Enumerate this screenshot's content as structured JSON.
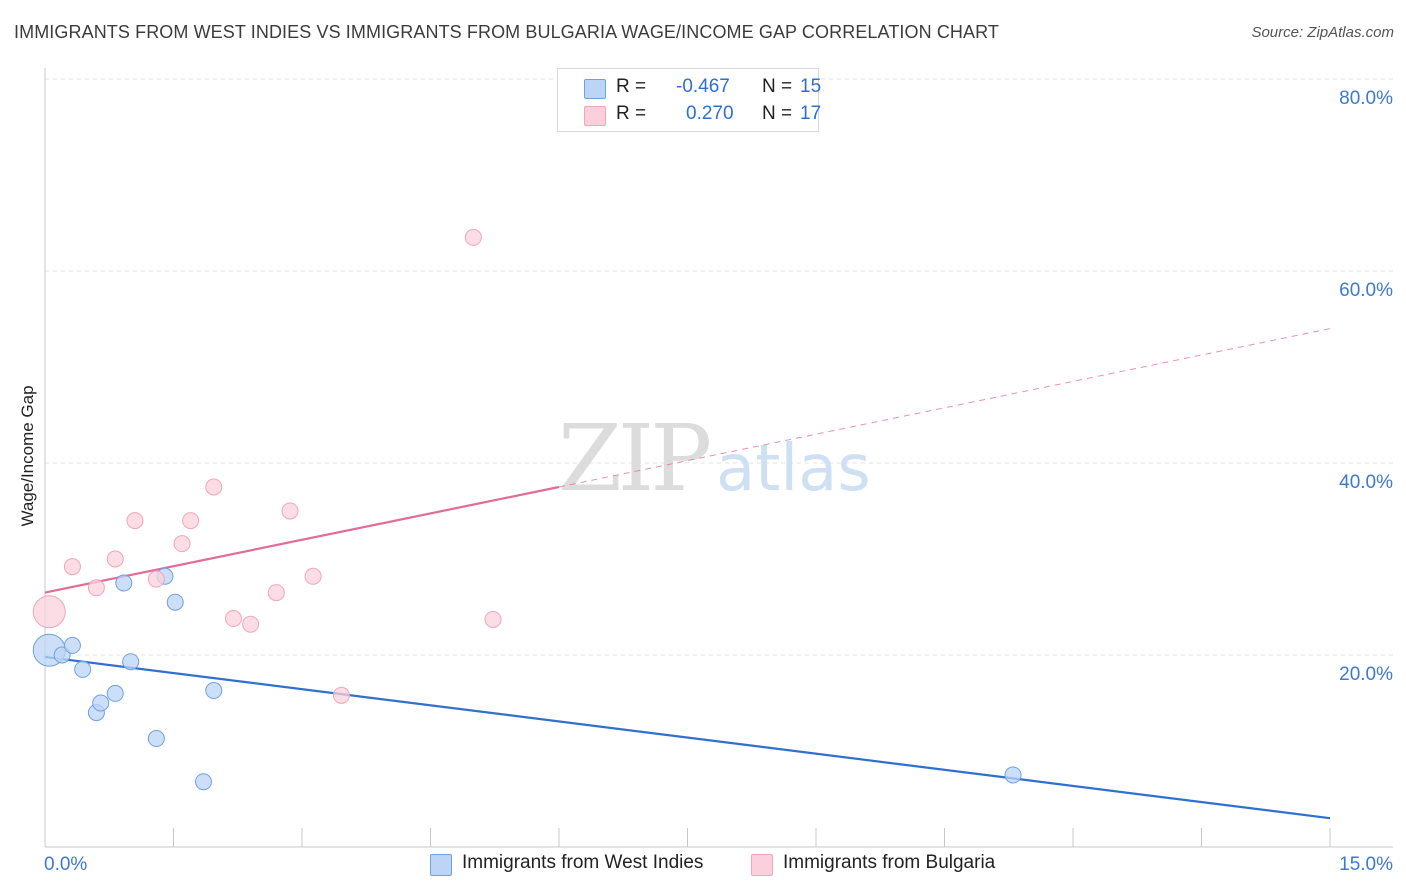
{
  "title": "IMMIGRANTS FROM WEST INDIES VS IMMIGRANTS FROM BULGARIA WAGE/INCOME GAP CORRELATION CHART",
  "source": "Source: ZipAtlas.com",
  "watermark": {
    "zip": "ZIP",
    "atlas": "atlas"
  },
  "legend": {
    "r_label": "R =",
    "n_label": "N =",
    "rows": [
      {
        "r": "-0.467",
        "n": "15"
      },
      {
        "r": "0.270",
        "n": "17"
      }
    ]
  },
  "chart_data": {
    "type": "scatter",
    "title": "IMMIGRANTS FROM WEST INDIES VS IMMIGRANTS FROM BULGARIA WAGE/INCOME GAP CORRELATION CHART",
    "xlabel": "",
    "ylabel": "Wage/Income Gap",
    "xlim": [
      0,
      15
    ],
    "ylim": [
      0,
      80
    ],
    "x_tick_labels": [
      "0.0%",
      "15.0%"
    ],
    "y_ticks": [
      20,
      40,
      60,
      80
    ],
    "y_tick_labels": [
      "20.0%",
      "40.0%",
      "60.0%",
      "80.0%"
    ],
    "grid": true,
    "legend_position": "top-center",
    "series": [
      {
        "name": "Immigrants from West Indies",
        "color": "#6fa0e3",
        "fill": "#bcd4f5",
        "line_color": "#2f6fd1",
        "r": -0.467,
        "n": 15,
        "trend": {
          "x0": 0,
          "y0": 19.8,
          "x1": 15,
          "y1": 3.0,
          "dashed_from": null
        },
        "points": [
          {
            "x": 0.05,
            "y": 20.5,
            "big": true
          },
          {
            "x": 0.2,
            "y": 20.0
          },
          {
            "x": 0.32,
            "y": 21.0
          },
          {
            "x": 0.44,
            "y": 18.5
          },
          {
            "x": 0.6,
            "y": 14.0
          },
          {
            "x": 0.65,
            "y": 15.0
          },
          {
            "x": 0.82,
            "y": 16.0
          },
          {
            "x": 0.92,
            "y": 27.5
          },
          {
            "x": 1.0,
            "y": 19.3
          },
          {
            "x": 1.3,
            "y": 11.3
          },
          {
            "x": 1.4,
            "y": 28.2
          },
          {
            "x": 1.52,
            "y": 25.5
          },
          {
            "x": 1.85,
            "y": 6.8
          },
          {
            "x": 1.97,
            "y": 16.3
          },
          {
            "x": 11.3,
            "y": 7.5
          }
        ]
      },
      {
        "name": "Immigrants from Bulgaria",
        "color": "#eea6bc",
        "fill": "#fbd0dc",
        "line_color": "#e36c93",
        "r": 0.27,
        "n": 17,
        "trend": {
          "x0": 0,
          "y0": 26.5,
          "x1": 15,
          "y1": 54.0,
          "dashed_from": 6.0
        },
        "points": [
          {
            "x": 0.05,
            "y": 24.5,
            "big": true
          },
          {
            "x": 0.32,
            "y": 29.2
          },
          {
            "x": 0.6,
            "y": 27.0
          },
          {
            "x": 0.82,
            "y": 30.0
          },
          {
            "x": 1.05,
            "y": 34.0
          },
          {
            "x": 1.3,
            "y": 27.9
          },
          {
            "x": 1.6,
            "y": 31.6
          },
          {
            "x": 1.7,
            "y": 34.0
          },
          {
            "x": 1.97,
            "y": 37.5
          },
          {
            "x": 2.2,
            "y": 23.8
          },
          {
            "x": 2.4,
            "y": 23.2
          },
          {
            "x": 2.7,
            "y": 26.5
          },
          {
            "x": 2.86,
            "y": 35.0
          },
          {
            "x": 3.13,
            "y": 28.2
          },
          {
            "x": 3.46,
            "y": 15.8
          },
          {
            "x": 5.0,
            "y": 63.5
          },
          {
            "x": 5.23,
            "y": 23.7
          }
        ]
      }
    ]
  }
}
